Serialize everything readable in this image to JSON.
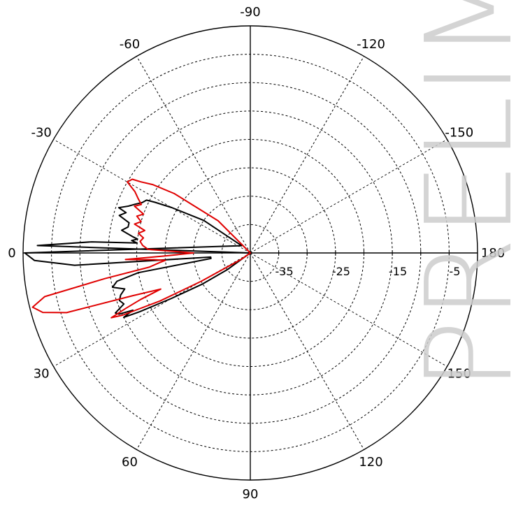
{
  "chart_data": {
    "type": "polar_line",
    "title": "",
    "angle_unit": "degrees",
    "angle_labels": [
      "-90",
      "-120",
      "-150",
      "180",
      "150",
      "120",
      "90",
      "60",
      "30",
      "0",
      "-30",
      "-60"
    ],
    "angle_values": [
      -90,
      -120,
      -150,
      180,
      150,
      120,
      90,
      60,
      30,
      0,
      -30,
      -60
    ],
    "angle_reference": "0 deg at left, angles increase clockwise-down (90 at bottom)",
    "radial_axis": {
      "unit": "dB",
      "range": [
        -40,
        0
      ],
      "ticks": [
        -35,
        -25,
        -15,
        -5
      ],
      "tick_labels": [
        "-35",
        "-25",
        "-15",
        "-5"
      ],
      "rings": [
        -35,
        -30,
        -25,
        -20,
        -15,
        -10,
        -5,
        0
      ],
      "grid": "dashed",
      "label_axis": "horizontal right"
    },
    "series": [
      {
        "color": "#000000",
        "points": [
          [
            0,
            -0.3
          ],
          [
            2,
            -2.0
          ],
          [
            4,
            -9
          ],
          [
            6,
            -33
          ],
          [
            8,
            -33
          ],
          [
            10,
            -20
          ],
          [
            12,
            -16
          ],
          [
            14,
            -15
          ],
          [
            16,
            -17
          ],
          [
            18,
            -16
          ],
          [
            20,
            -15.5
          ],
          [
            22,
            -16
          ],
          [
            24,
            -14
          ],
          [
            25,
            -14.5
          ],
          [
            26,
            -17
          ],
          [
            27,
            -15
          ],
          [
            28,
            -18
          ],
          [
            30,
            -24
          ],
          [
            33,
            -30
          ],
          [
            36,
            -35
          ],
          [
            40,
            -40
          ],
          [
            -2,
            -2.5
          ],
          [
            -4,
            -12
          ],
          [
            -5,
            -20
          ],
          [
            -6,
            -19
          ],
          [
            -7,
            -20
          ],
          [
            -8,
            -19
          ],
          [
            -10,
            -17
          ],
          [
            -12,
            -18
          ],
          [
            -14,
            -18
          ],
          [
            -16,
            -16
          ],
          [
            -18,
            -17
          ],
          [
            -19,
            -15.5
          ],
          [
            -21,
            -17
          ],
          [
            -23,
            -18
          ],
          [
            -25,
            -19
          ],
          [
            -27,
            -19.5
          ],
          [
            -28,
            -21
          ],
          [
            -30,
            -24
          ],
          [
            -35,
            -30
          ],
          [
            -40,
            -38
          ]
        ]
      },
      {
        "color": "#e00000",
        "points": [
          [
            -60,
            -40
          ],
          [
            -45,
            -32
          ],
          [
            -38,
            -23
          ],
          [
            -35,
            -19
          ],
          [
            -33,
            -17
          ],
          [
            -32,
            -15.5
          ],
          [
            -30,
            -15
          ],
          [
            -28,
            -17
          ],
          [
            -26,
            -18
          ],
          [
            -24,
            -19
          ],
          [
            -22,
            -18
          ],
          [
            -20,
            -20
          ],
          [
            -18,
            -19
          ],
          [
            -16,
            -20
          ],
          [
            -14,
            -19
          ],
          [
            -12,
            -21
          ],
          [
            -10,
            -20
          ],
          [
            -8,
            -21
          ],
          [
            -6,
            -20.5
          ],
          [
            -4,
            -21
          ],
          [
            -2,
            -22
          ],
          [
            0,
            -30
          ],
          [
            2,
            -25
          ],
          [
            3,
            -18
          ],
          [
            4,
            -23
          ],
          [
            5,
            -25
          ],
          [
            6,
            -24
          ],
          [
            8,
            -22
          ],
          [
            10,
            -14
          ],
          [
            12,
            -3
          ],
          [
            14,
            -0.5
          ],
          [
            16,
            -2
          ],
          [
            18,
            -6
          ],
          [
            20,
            -18
          ],
          [
            22,
            -23
          ],
          [
            23,
            -19
          ],
          [
            24,
            -16
          ],
          [
            25,
            -13
          ],
          [
            26,
            -15
          ],
          [
            28,
            -22
          ],
          [
            30,
            -30
          ],
          [
            35,
            -38
          ],
          [
            40,
            -40
          ]
        ]
      }
    ]
  },
  "watermark": {
    "text": "PRELIM",
    "color": "#cccccc"
  }
}
